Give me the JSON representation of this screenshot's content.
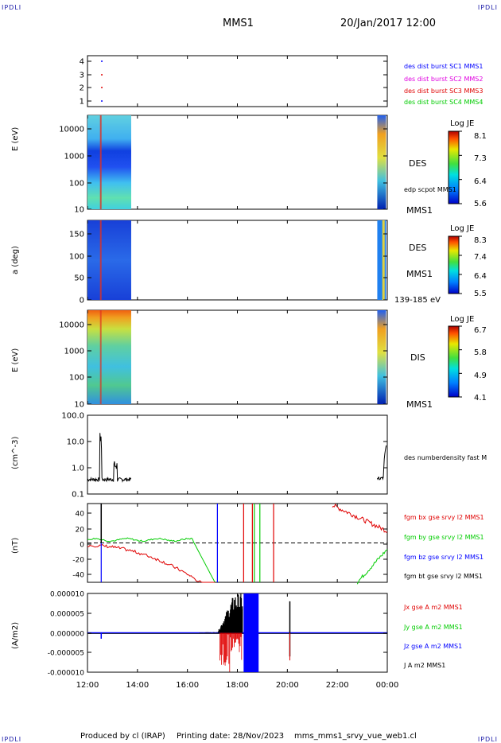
{
  "header": {
    "corner_tl": "IPDLI",
    "corner_tr": "IPDLI",
    "corner_bl": "IPDLI",
    "corner_br": "IPDLI",
    "spacecraft": "MMS1",
    "datetime": "20/Jan/2017 12:00"
  },
  "footer": {
    "produced": "Produced by cl (IRAP)",
    "printing": "Printing date: 28/Nov/2023",
    "file": "mms_mms1_srvy_vue_web1.cl"
  },
  "colors": {
    "blue": "#0000ff",
    "magenta": "#e000e0",
    "red": "#e00000",
    "green": "#00cc00",
    "black": "#000000"
  },
  "chart_data": [
    {
      "type": "scatter",
      "panel": "burst",
      "y_ticks": [
        "4",
        "3",
        "2",
        "1"
      ],
      "series": [
        {
          "name": "des dist burst SC1 MMS1",
          "color": "#0000ff"
        },
        {
          "name": "des dist burst SC2 MMS2",
          "color": "#e000e0"
        },
        {
          "name": "des dist burst SC3 MMS3",
          "color": "#e00000"
        },
        {
          "name": "des dist burst SC4 MMS4",
          "color": "#00cc00"
        }
      ]
    },
    {
      "type": "heatmap",
      "panel": "des_energy",
      "ylabel": "E (eV)",
      "y_ticks": [
        "10000",
        "1000",
        "100",
        "10"
      ],
      "label": "DES",
      "sublabel": "edp scpot MMS1",
      "bottom_label": "MMS1",
      "colorbar": {
        "title": "Log JE",
        "ticks": [
          "8.1",
          "7.3",
          "6.4",
          "5.6"
        ]
      }
    },
    {
      "type": "heatmap",
      "panel": "des_pitch",
      "ylabel": "a (deg)",
      "y_ticks": [
        "150",
        "100",
        "50",
        "0"
      ],
      "label": "DES",
      "sublabel": "MMS1",
      "bottom_label": "139-185 eV",
      "colorbar": {
        "title": "Log JE",
        "ticks": [
          "8.3",
          "7.4",
          "6.4",
          "5.5"
        ]
      }
    },
    {
      "type": "heatmap",
      "panel": "dis_energy",
      "ylabel": "E (eV)",
      "y_ticks": [
        "10000",
        "1000",
        "100",
        "10"
      ],
      "label": "DIS",
      "bottom_label": "MMS1",
      "colorbar": {
        "title": "Log JE",
        "ticks": [
          "6.7",
          "5.8",
          "4.9",
          "4.1"
        ]
      }
    },
    {
      "type": "line",
      "panel": "density",
      "ylabel": "(cm^-3)",
      "y_ticks": [
        "100.0",
        "10.0",
        "1.0",
        "0.1"
      ],
      "series": [
        {
          "name": "des numberdensity fast M",
          "color": "#000000"
        }
      ]
    },
    {
      "type": "line",
      "panel": "bfield",
      "ylabel": "(nT)",
      "y_ticks": [
        "40",
        "20",
        "0",
        "-20",
        "-40"
      ],
      "ylim": [
        -50,
        50
      ],
      "series": [
        {
          "name": "fgm bx gse srvy l2 MMS1",
          "color": "#e00000"
        },
        {
          "name": "fgm by gse srvy l2 MMS1",
          "color": "#00cc00"
        },
        {
          "name": "fgm bz gse srvy l2 MMS1",
          "color": "#0000ff"
        },
        {
          "name": "fgm bt gse srvy l2 MMS1",
          "color": "#000000"
        }
      ]
    },
    {
      "type": "line",
      "panel": "current",
      "ylabel": "(A/m2)",
      "y_ticks": [
        "0.000010",
        "0.000005",
        "0.000000",
        "-0.000005",
        "-0.000010"
      ],
      "ylim": [
        -1e-05,
        1e-05
      ],
      "series": [
        {
          "name": "Jx gse A m2 MMS1",
          "color": "#e00000"
        },
        {
          "name": "Jy gse A m2 MMS1",
          "color": "#00cc00"
        },
        {
          "name": "Jz gse A m2 MMS1",
          "color": "#0000ff"
        },
        {
          "name": "J A m2 MMS1",
          "color": "#000000"
        }
      ]
    }
  ],
  "x_axis": {
    "ticks": [
      "12:00",
      "14:00",
      "16:00",
      "18:00",
      "20:00",
      "22:00",
      "00:00"
    ]
  }
}
